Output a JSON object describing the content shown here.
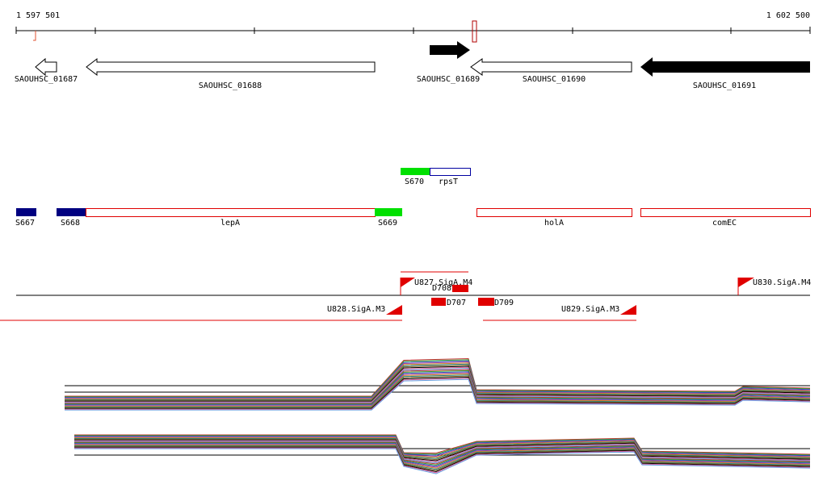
{
  "ruler": {
    "start": "1 597 501",
    "end": "1 602 500"
  },
  "genes": [
    "SAOUHSC_01687",
    "SAOUHSC_01688",
    "SAOUHSC_01689",
    "SAOUHSC_01690",
    "SAOUHSC_01691"
  ],
  "features": [
    "S670",
    "rpsT",
    "S667",
    "S668",
    "lepA",
    "S669",
    "holA",
    "comEC"
  ],
  "promoters": [
    "U827.SigA.M4",
    "U828.SigA.M3",
    "U829.SigA.M3",
    "U830.SigA.M4"
  ],
  "segments": [
    "D708",
    "D707",
    "D709"
  ]
}
